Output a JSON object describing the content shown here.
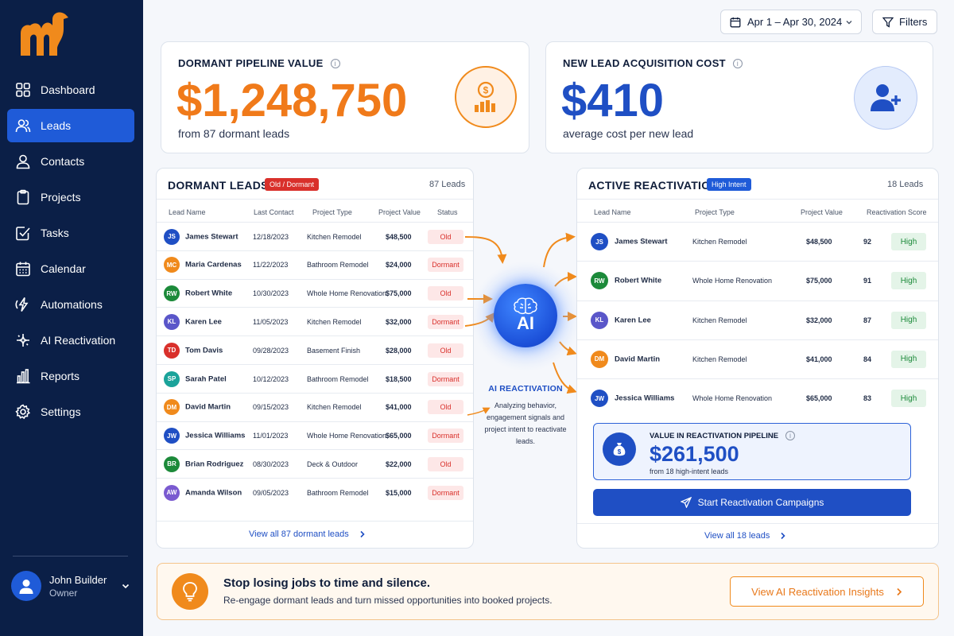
{
  "brand": {
    "accent": "#f08a1c",
    "primary": "#1f4fc4",
    "sidebar_bg": "#0b1f47"
  },
  "sidebar": {
    "items": [
      {
        "label": "Dashboard",
        "icon": "grid-icon",
        "active": false
      },
      {
        "label": "Leads",
        "icon": "users-icon",
        "active": true
      },
      {
        "label": "Contacts",
        "icon": "user-icon",
        "active": false
      },
      {
        "label": "Projects",
        "icon": "clipboard-icon",
        "active": false
      },
      {
        "label": "Tasks",
        "icon": "checkbox-icon",
        "active": false
      },
      {
        "label": "Calendar",
        "icon": "calendar-icon",
        "active": false
      },
      {
        "label": "Automations",
        "icon": "automation-icon",
        "active": false
      },
      {
        "label": "AI Reactivation",
        "icon": "ai-chip-icon",
        "active": false
      },
      {
        "label": "Reports",
        "icon": "bar-chart-icon",
        "active": false
      },
      {
        "label": "Settings",
        "icon": "gear-icon",
        "active": false
      }
    ],
    "user": {
      "name": "John Builder",
      "role": "Owner"
    }
  },
  "topbar": {
    "date_range": "Apr 1 – Apr 30, 2024",
    "filters_label": "Filters"
  },
  "kpis": {
    "dormant": {
      "title": "DORMANT PIPELINE VALUE",
      "value": "$1,248,750",
      "sub": "from 87 dormant leads"
    },
    "acquisition": {
      "title": "NEW LEAD ACQUISITION COST",
      "value": "$410",
      "sub": "average cost per new lead"
    }
  },
  "dormant_table": {
    "title": "DORMANT LEADS",
    "badge": "Old / Dormant",
    "count": "87 Leads",
    "headers": [
      "Lead Name",
      "Last Contact",
      "Project Type",
      "Project Value",
      "Status"
    ],
    "rows": [
      {
        "initials": "JS",
        "name": "James Stewart",
        "last": "12/18/2023",
        "type": "Kitchen Remodel",
        "value": "$48,500",
        "status": "Old",
        "color": "#1f4fc4"
      },
      {
        "initials": "MC",
        "name": "Maria Cardenas",
        "last": "11/22/2023",
        "type": "Bathroom Remodel",
        "value": "$24,000",
        "status": "Dormant",
        "color": "#f08a1c"
      },
      {
        "initials": "RW",
        "name": "Robert White",
        "last": "10/30/2023",
        "type": "Whole Home Renovation",
        "value": "$75,000",
        "status": "Old",
        "color": "#1c8a3a"
      },
      {
        "initials": "KL",
        "name": "Karen Lee",
        "last": "11/05/2023",
        "type": "Kitchen Remodel",
        "value": "$32,000",
        "status": "Dormant",
        "color": "#5a56c9"
      },
      {
        "initials": "TD",
        "name": "Tom Davis",
        "last": "09/28/2023",
        "type": "Basement Finish",
        "value": "$28,000",
        "status": "Old",
        "color": "#d9302b"
      },
      {
        "initials": "SP",
        "name": "Sarah Patel",
        "last": "10/12/2023",
        "type": "Bathroom Remodel",
        "value": "$18,500",
        "status": "Dormant",
        "color": "#1aa39a"
      },
      {
        "initials": "DM",
        "name": "David Martin",
        "last": "09/15/2023",
        "type": "Kitchen Remodel",
        "value": "$41,000",
        "status": "Old",
        "color": "#f08a1c"
      },
      {
        "initials": "JW",
        "name": "Jessica Williams",
        "last": "11/01/2023",
        "type": "Whole Home Renovation",
        "value": "$65,000",
        "status": "Dormant",
        "color": "#1f4fc4"
      },
      {
        "initials": "BR",
        "name": "Brian Rodriguez",
        "last": "08/30/2023",
        "type": "Deck & Outdoor",
        "value": "$22,000",
        "status": "Old",
        "color": "#1c8a3a"
      },
      {
        "initials": "AW",
        "name": "Amanda Wilson",
        "last": "09/05/2023",
        "type": "Bathroom Remodel",
        "value": "$15,000",
        "status": "Dormant",
        "color": "#7a5ad0"
      }
    ],
    "view_all": "View all 87 dormant leads"
  },
  "ai": {
    "badge": "AI",
    "title": "AI REACTIVATION",
    "description": "Analyzing behavior, engagement signals and project intent to reactivate leads."
  },
  "active_table": {
    "title": "ACTIVE REACTIVATION",
    "badge": "High Intent",
    "count": "18 Leads",
    "headers": [
      "Lead Name",
      "Project Type",
      "Project Value",
      "Reactivation Score"
    ],
    "rows": [
      {
        "initials": "JS",
        "name": "James Stewart",
        "type": "Kitchen Remodel",
        "value": "$48,500",
        "score": "92",
        "level": "High",
        "color": "#1f4fc4"
      },
      {
        "initials": "RW",
        "name": "Robert White",
        "type": "Whole Home Renovation",
        "value": "$75,000",
        "score": "91",
        "level": "High",
        "color": "#1c8a3a"
      },
      {
        "initials": "KL",
        "name": "Karen Lee",
        "type": "Kitchen Remodel",
        "value": "$32,000",
        "score": "87",
        "level": "High",
        "color": "#5a56c9"
      },
      {
        "initials": "DM",
        "name": "David Martin",
        "type": "Kitchen Remodel",
        "value": "$41,000",
        "score": "84",
        "level": "High",
        "color": "#f08a1c"
      },
      {
        "initials": "JW",
        "name": "Jessica Williams",
        "type": "Whole Home Renovation",
        "value": "$65,000",
        "score": "83",
        "level": "High",
        "color": "#1f4fc4"
      }
    ],
    "pipeline": {
      "label": "VALUE IN REACTIVATION PIPELINE",
      "value": "$261,500",
      "sub": "from 18 high-intent leads"
    },
    "cta": "Start Reactivation Campaigns",
    "view_all": "View all 18 leads"
  },
  "banner": {
    "title": "Stop losing jobs to time and silence.",
    "sub": "Re-engage dormant leads and turn missed opportunities into booked projects.",
    "button": "View AI Reactivation Insights"
  }
}
